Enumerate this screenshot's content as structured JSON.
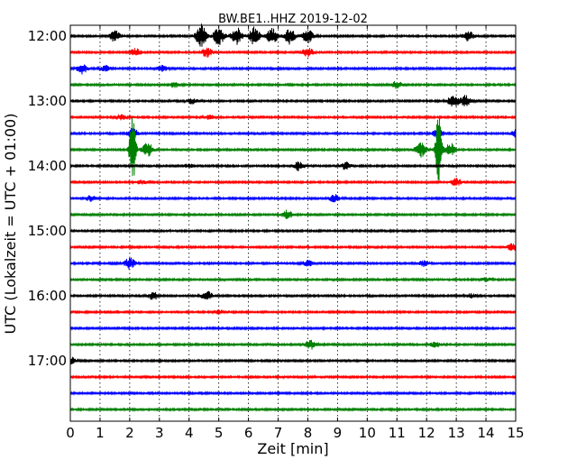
{
  "chart_data": {
    "type": "line",
    "title": "BW.BE1..HHZ 2019-12-02",
    "xlabel": "Zeit  [min]",
    "ylabel": "UTC (Lokalzeit = UTC + 01:00)",
    "xlim": [
      0,
      15
    ],
    "x_ticks": [
      0,
      1,
      2,
      3,
      4,
      5,
      6,
      7,
      8,
      9,
      10,
      11,
      12,
      13,
      14,
      15
    ],
    "x_tick_labels": [
      "0",
      "1",
      "2",
      "3",
      "4",
      "5",
      "6",
      "7",
      "8",
      "9",
      "10",
      "11",
      "12",
      "13",
      "14",
      "15"
    ],
    "y_tick_labels": [
      "12:00",
      "13:00",
      "14:00",
      "15:00",
      "16:00",
      "17:00"
    ],
    "grid": "vertical dotted",
    "colors": [
      "#000000",
      "#ff0000",
      "#0000ff",
      "#008000"
    ],
    "series": [
      {
        "start": "12:00",
        "events": [
          [
            1.5,
            6
          ],
          [
            4.4,
            13
          ],
          [
            5.0,
            10
          ],
          [
            5.6,
            10
          ],
          [
            6.2,
            10
          ],
          [
            6.8,
            9
          ],
          [
            7.4,
            9
          ],
          [
            8.0,
            8
          ],
          [
            13.4,
            6
          ]
        ]
      },
      {
        "start": "12:15",
        "events": [
          [
            2.2,
            4
          ],
          [
            4.6,
            5
          ],
          [
            8.0,
            5
          ]
        ]
      },
      {
        "start": "12:30",
        "events": [
          [
            0.4,
            6
          ],
          [
            1.2,
            3
          ],
          [
            3.1,
            3
          ]
        ]
      },
      {
        "start": "12:45",
        "events": [
          [
            3.5,
            3
          ],
          [
            11.0,
            4
          ]
        ]
      },
      {
        "start": "13:00",
        "events": [
          [
            4.1,
            3
          ],
          [
            12.9,
            7
          ],
          [
            13.3,
            6
          ]
        ]
      },
      {
        "start": "13:15",
        "events": [
          [
            1.7,
            3
          ],
          [
            4.7,
            2
          ]
        ]
      },
      {
        "start": "13:30",
        "events": [
          [
            2.1,
            6
          ],
          [
            12.4,
            6
          ],
          [
            15.0,
            4
          ]
        ]
      },
      {
        "start": "13:45",
        "events": [
          [
            2.1,
            38
          ],
          [
            2.6,
            8
          ],
          [
            11.8,
            8
          ],
          [
            12.4,
            40
          ],
          [
            12.8,
            7
          ]
        ]
      },
      {
        "start": "14:00",
        "events": [
          [
            7.7,
            5
          ],
          [
            9.3,
            4
          ],
          [
            4.0,
            2
          ]
        ]
      },
      {
        "start": "14:15",
        "events": [
          [
            13.0,
            4
          ],
          [
            2.4,
            2
          ]
        ]
      },
      {
        "start": "14:30",
        "events": [
          [
            0.7,
            3
          ],
          [
            8.9,
            4
          ]
        ]
      },
      {
        "start": "14:45",
        "events": [
          [
            7.3,
            5
          ]
        ]
      },
      {
        "start": "15:00",
        "events": []
      },
      {
        "start": "15:15",
        "events": [
          [
            14.9,
            4
          ]
        ]
      },
      {
        "start": "15:30",
        "events": [
          [
            2.0,
            6
          ],
          [
            8.0,
            3
          ],
          [
            11.9,
            3
          ]
        ]
      },
      {
        "start": "15:45",
        "events": [
          [
            14.0,
            2
          ]
        ]
      },
      {
        "start": "16:00",
        "events": [
          [
            2.8,
            4
          ],
          [
            4.6,
            5
          ],
          [
            13.5,
            2
          ]
        ]
      },
      {
        "start": "16:15",
        "events": [
          [
            5.0,
            2
          ]
        ]
      },
      {
        "start": "16:30",
        "events": []
      },
      {
        "start": "16:45",
        "events": [
          [
            8.1,
            5
          ],
          [
            12.3,
            3
          ]
        ]
      },
      {
        "start": "17:00",
        "events": [
          [
            0.0,
            4
          ]
        ]
      },
      {
        "start": "17:15",
        "events": []
      },
      {
        "start": "17:30",
        "events": []
      },
      {
        "start": "17:45",
        "events": []
      }
    ]
  }
}
